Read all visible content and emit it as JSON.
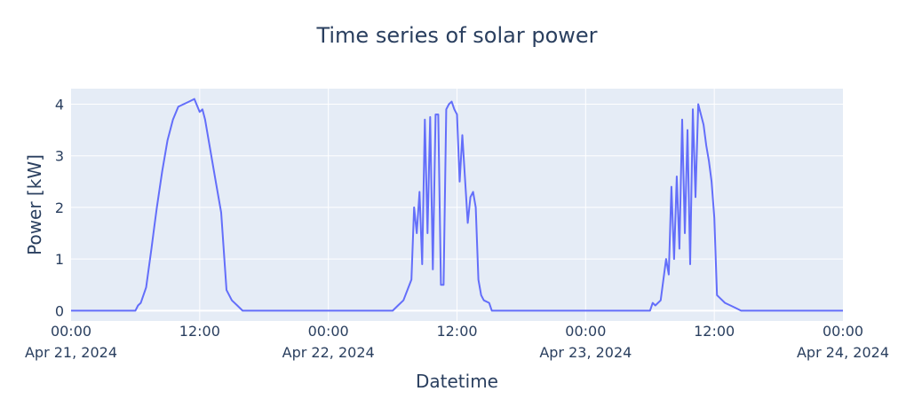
{
  "chart_data": {
    "type": "line",
    "title": "Time series of solar power",
    "xlabel": "Datetime",
    "ylabel": "Power [kW]",
    "xlim": [
      "2024-04-21 00:00",
      "2024-04-24 00:00"
    ],
    "ylim": [
      -0.2,
      4.3
    ],
    "y_ticks": [
      0,
      1,
      2,
      3,
      4
    ],
    "x_ticks": [
      {
        "t": "2024-04-21 00:00",
        "line1": "00:00",
        "line2": "Apr 21, 2024"
      },
      {
        "t": "2024-04-21 12:00",
        "line1": "12:00",
        "line2": ""
      },
      {
        "t": "2024-04-22 00:00",
        "line1": "00:00",
        "line2": "Apr 22, 2024"
      },
      {
        "t": "2024-04-22 12:00",
        "line1": "12:00",
        "line2": ""
      },
      {
        "t": "2024-04-23 00:00",
        "line1": "00:00",
        "line2": "Apr 23, 2024"
      },
      {
        "t": "2024-04-23 12:00",
        "line1": "12:00",
        "line2": ""
      },
      {
        "t": "2024-04-24 00:00",
        "line1": "00:00",
        "line2": "Apr 24, 2024"
      }
    ],
    "grid": true,
    "colors": {
      "line": "#636efa",
      "plot_bg": "#e5ecf6",
      "grid": "#ffffff",
      "text": "#2a3f5f"
    },
    "series": [
      {
        "x": [
          "2024-04-21 00:00",
          "2024-04-21 06:00",
          "2024-04-21 06:15",
          "2024-04-21 06:30",
          "2024-04-21 07:00",
          "2024-04-21 07:30",
          "2024-04-21 07:45",
          "2024-04-21 08:00",
          "2024-04-21 08:30",
          "2024-04-21 09:00",
          "2024-04-21 09:30",
          "2024-04-21 10:00",
          "2024-04-21 10:30",
          "2024-04-21 11:00",
          "2024-04-21 11:30",
          "2024-04-21 12:00",
          "2024-04-21 12:15",
          "2024-04-21 12:30",
          "2024-04-21 13:00",
          "2024-04-21 13:30",
          "2024-04-21 14:00",
          "2024-04-21 14:30",
          "2024-04-21 15:00",
          "2024-04-21 15:30",
          "2024-04-21 16:00",
          "2024-04-21 16:30",
          "2024-04-21 17:00",
          "2024-04-21 17:30",
          "2024-04-21 18:00",
          "2024-04-22 06:00",
          "2024-04-22 06:30",
          "2024-04-22 07:00",
          "2024-04-22 07:45",
          "2024-04-22 08:00",
          "2024-04-22 08:15",
          "2024-04-22 08:30",
          "2024-04-22 08:45",
          "2024-04-22 09:00",
          "2024-04-22 09:15",
          "2024-04-22 09:30",
          "2024-04-22 09:45",
          "2024-04-22 10:00",
          "2024-04-22 10:15",
          "2024-04-22 10:30",
          "2024-04-22 10:45",
          "2024-04-22 11:00",
          "2024-04-22 11:15",
          "2024-04-22 11:30",
          "2024-04-22 11:45",
          "2024-04-22 12:00",
          "2024-04-22 12:15",
          "2024-04-22 12:30",
          "2024-04-22 13:00",
          "2024-04-22 13:15",
          "2024-04-22 13:30",
          "2024-04-22 13:45",
          "2024-04-22 14:00",
          "2024-04-22 14:15",
          "2024-04-22 14:30",
          "2024-04-22 15:00",
          "2024-04-22 15:15",
          "2024-04-22 15:30",
          "2024-04-22 16:00",
          "2024-04-22 16:30",
          "2024-04-22 17:00",
          "2024-04-22 18:00",
          "2024-04-23 06:00",
          "2024-04-23 06:15",
          "2024-04-23 06:30",
          "2024-04-23 07:00",
          "2024-04-23 07:30",
          "2024-04-23 07:45",
          "2024-04-23 08:00",
          "2024-04-23 08:15",
          "2024-04-23 08:30",
          "2024-04-23 08:45",
          "2024-04-23 09:00",
          "2024-04-23 09:15",
          "2024-04-23 09:30",
          "2024-04-23 09:45",
          "2024-04-23 10:00",
          "2024-04-23 10:15",
          "2024-04-23 10:30",
          "2024-04-23 10:45",
          "2024-04-23 11:00",
          "2024-04-23 11:15",
          "2024-04-23 11:30",
          "2024-04-23 11:45",
          "2024-04-23 12:00",
          "2024-04-23 12:15",
          "2024-04-23 12:30",
          "2024-04-23 13:00",
          "2024-04-23 13:30",
          "2024-04-23 14:00",
          "2024-04-23 14:30",
          "2024-04-23 15:00",
          "2024-04-23 15:30",
          "2024-04-23 16:00",
          "2024-04-23 16:30",
          "2024-04-23 17:00",
          "2024-04-24 00:00"
        ],
        "y": [
          0,
          0,
          0.1,
          0.15,
          0.45,
          1.2,
          1.6,
          2.0,
          2.7,
          3.3,
          3.7,
          3.95,
          4.0,
          4.05,
          4.1,
          3.85,
          3.9,
          3.7,
          3.1,
          2.5,
          1.9,
          0.4,
          0.2,
          0.1,
          0,
          0,
          0,
          0,
          0,
          0,
          0.1,
          0.2,
          0.6,
          2.0,
          1.5,
          2.3,
          0.9,
          3.7,
          1.5,
          3.75,
          0.8,
          3.8,
          3.8,
          0.5,
          0.5,
          3.9,
          4.0,
          4.05,
          3.9,
          3.8,
          2.5,
          3.4,
          1.7,
          2.2,
          2.3,
          2.0,
          0.6,
          0.3,
          0.2,
          0.15,
          0,
          0,
          0,
          0,
          0,
          0,
          0,
          0.15,
          0.1,
          0.2,
          1.0,
          0.7,
          2.4,
          1.0,
          2.6,
          1.2,
          3.7,
          1.5,
          3.5,
          0.9,
          3.9,
          2.2,
          4.0,
          3.8,
          3.6,
          3.2,
          2.9,
          2.5,
          1.8,
          0.3,
          0.25,
          0.15,
          0.1,
          0.05,
          0,
          0,
          0,
          0,
          0,
          0,
          0
        ]
      }
    ]
  }
}
